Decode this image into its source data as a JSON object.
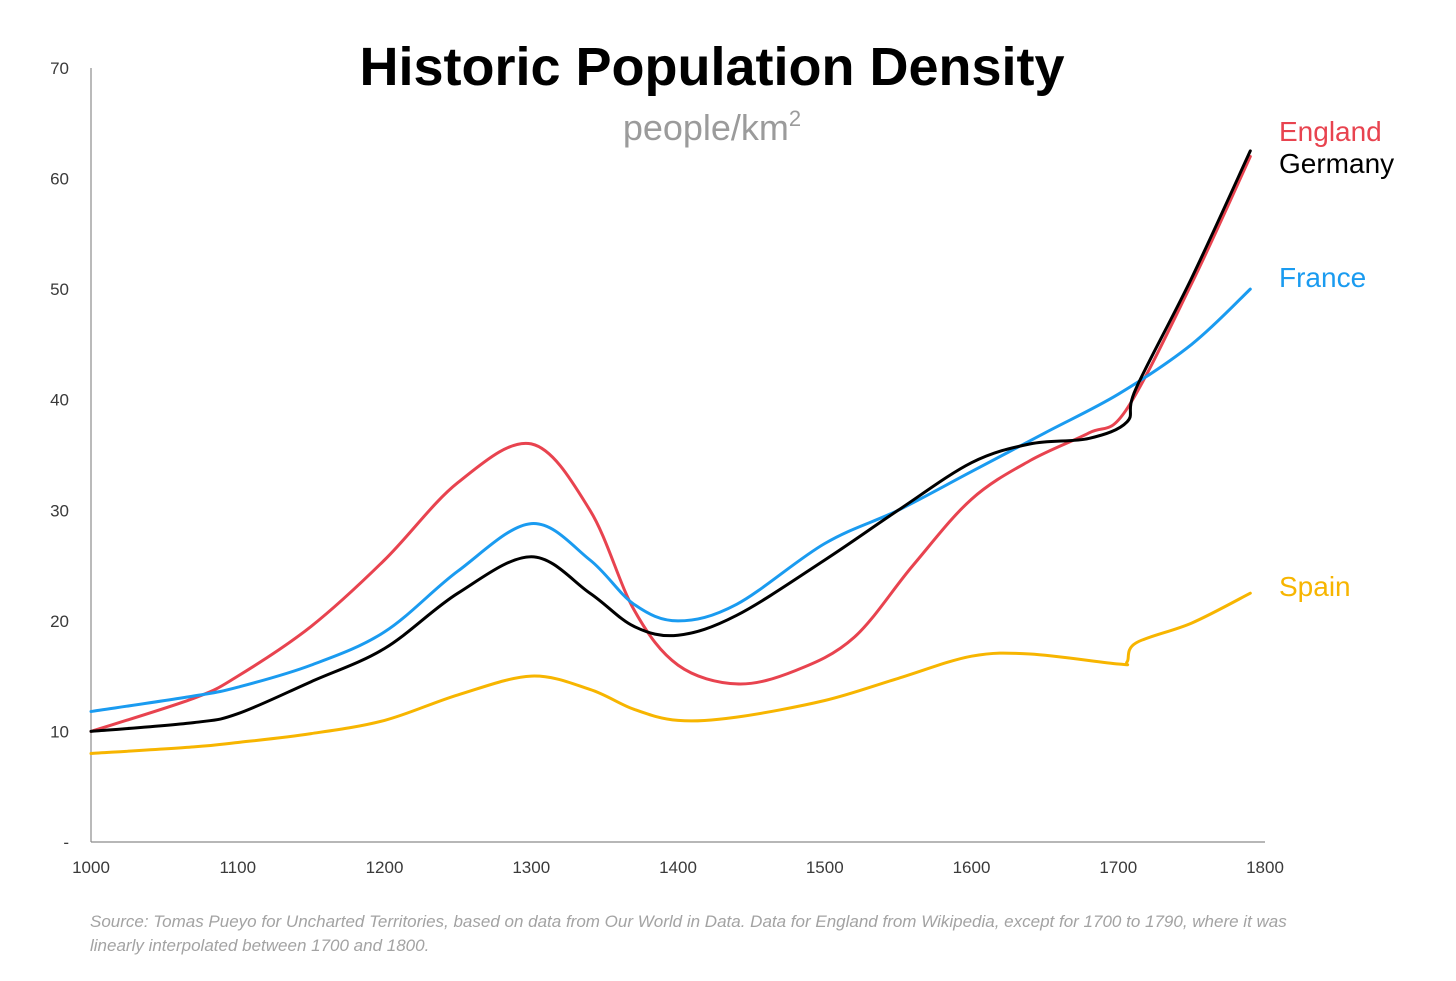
{
  "chart_data": {
    "type": "line",
    "title": "Historic Population Density",
    "subtitle_main": "people/km",
    "subtitle_sup": "2",
    "xlabel": "",
    "ylabel": "",
    "xlim": [
      1000,
      1800
    ],
    "ylim": [
      0,
      70
    ],
    "x_ticks": [
      1000,
      1100,
      1200,
      1300,
      1400,
      1500,
      1600,
      1700,
      1800
    ],
    "x_tick_labels": [
      "1000",
      "1100",
      "1200",
      "1300",
      "1400",
      "1500",
      "1600",
      "1700",
      "1800"
    ],
    "y_ticks": [
      0,
      10,
      20,
      30,
      40,
      50,
      60,
      70
    ],
    "y_tick_labels": [
      "-",
      "10",
      "20",
      "30",
      "40",
      "50",
      "60",
      "70"
    ],
    "grid": false,
    "legend_placement": "right-end-labels",
    "series": [
      {
        "name": "England",
        "color": "#e8434f",
        "points": [
          [
            1000,
            10
          ],
          [
            1070,
            13
          ],
          [
            1100,
            15
          ],
          [
            1150,
            19.5
          ],
          [
            1200,
            25.5
          ],
          [
            1250,
            32.5
          ],
          [
            1300,
            36
          ],
          [
            1340,
            30
          ],
          [
            1370,
            21
          ],
          [
            1400,
            16
          ],
          [
            1440,
            14.3
          ],
          [
            1480,
            15.5
          ],
          [
            1520,
            18.5
          ],
          [
            1560,
            25
          ],
          [
            1600,
            31
          ],
          [
            1640,
            34.5
          ],
          [
            1680,
            37
          ],
          [
            1705,
            39
          ],
          [
            1750,
            50.5
          ],
          [
            1790,
            62
          ]
        ]
      },
      {
        "name": "Germany",
        "color": "#000000",
        "points": [
          [
            1000,
            10
          ],
          [
            1070,
            10.8
          ],
          [
            1100,
            11.6
          ],
          [
            1150,
            14.5
          ],
          [
            1200,
            17.5
          ],
          [
            1250,
            22.5
          ],
          [
            1300,
            25.8
          ],
          [
            1340,
            22.5
          ],
          [
            1370,
            19.5
          ],
          [
            1400,
            18.7
          ],
          [
            1440,
            20.5
          ],
          [
            1500,
            25.5
          ],
          [
            1550,
            30
          ],
          [
            1600,
            34.3
          ],
          [
            1640,
            36
          ],
          [
            1680,
            36.5
          ],
          [
            1706,
            38
          ],
          [
            1712,
            41
          ],
          [
            1750,
            51
          ],
          [
            1790,
            62.5
          ]
        ]
      },
      {
        "name": "France",
        "color": "#1a9bf0",
        "points": [
          [
            1000,
            11.8
          ],
          [
            1070,
            13.2
          ],
          [
            1100,
            14
          ],
          [
            1150,
            16
          ],
          [
            1200,
            19
          ],
          [
            1250,
            24.5
          ],
          [
            1300,
            28.8
          ],
          [
            1340,
            25.5
          ],
          [
            1370,
            21.5
          ],
          [
            1400,
            20
          ],
          [
            1440,
            21.5
          ],
          [
            1500,
            27
          ],
          [
            1550,
            30
          ],
          [
            1600,
            33.5
          ],
          [
            1650,
            37
          ],
          [
            1700,
            40.5
          ],
          [
            1750,
            45
          ],
          [
            1790,
            50
          ]
        ]
      },
      {
        "name": "Spain",
        "color": "#f7b500",
        "points": [
          [
            1000,
            8
          ],
          [
            1070,
            8.6
          ],
          [
            1100,
            9
          ],
          [
            1150,
            9.8
          ],
          [
            1200,
            11
          ],
          [
            1250,
            13.3
          ],
          [
            1300,
            15
          ],
          [
            1340,
            13.8
          ],
          [
            1370,
            12
          ],
          [
            1400,
            11
          ],
          [
            1440,
            11.3
          ],
          [
            1500,
            12.8
          ],
          [
            1550,
            14.8
          ],
          [
            1600,
            16.8
          ],
          [
            1640,
            17
          ],
          [
            1700,
            16.1
          ],
          [
            1706,
            16.3
          ],
          [
            1712,
            18
          ],
          [
            1750,
            19.8
          ],
          [
            1790,
            22.5
          ]
        ]
      }
    ],
    "source_note": "Source: Tomas Pueyo for Uncharted Territories, based on data from Our World in Data. Data for England from Wikipedia, except for 1700 to 1790, where it was linearly interpolated between 1700 and 1800."
  }
}
